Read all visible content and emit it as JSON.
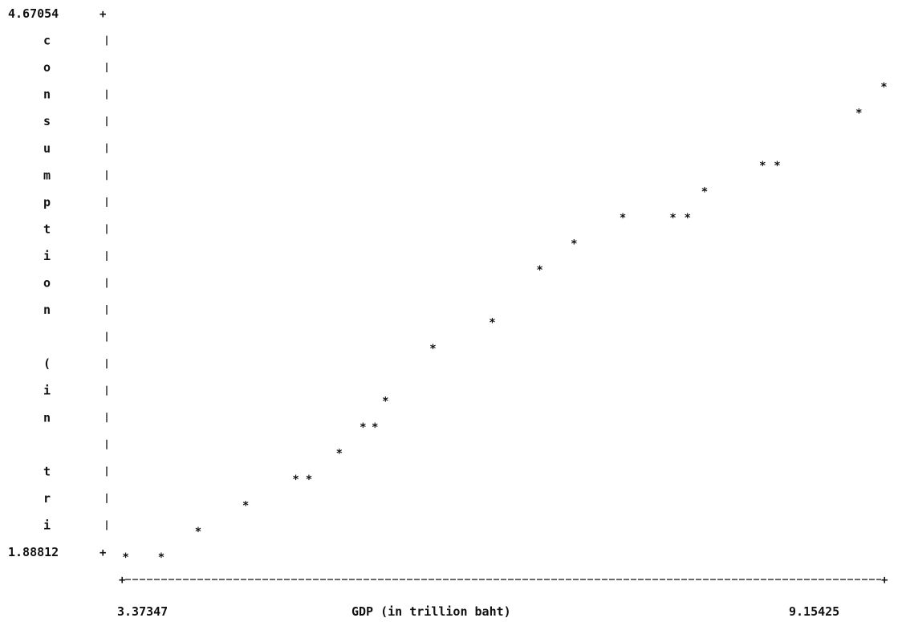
{
  "chart_data": {
    "type": "scatter",
    "title": "",
    "xlabel": "GDP (in trillion baht)",
    "ylabel": "consumption (in tri",
    "xlim": [
      3.37347,
      9.15425
    ],
    "ylim": [
      1.88812,
      4.67054
    ],
    "x_tick_labels": [
      "3.37347",
      "9.15425"
    ],
    "y_tick_labels": [
      "4.67054",
      "1.88812"
    ],
    "grid": false,
    "points": [
      {
        "x": 3.4,
        "y": 1.888
      },
      {
        "x": 3.67,
        "y": 1.888
      },
      {
        "x": 3.95,
        "y": 2.02
      },
      {
        "x": 4.31,
        "y": 2.155
      },
      {
        "x": 4.69,
        "y": 2.29
      },
      {
        "x": 4.79,
        "y": 2.29
      },
      {
        "x": 5.02,
        "y": 2.425
      },
      {
        "x": 5.2,
        "y": 2.56
      },
      {
        "x": 5.29,
        "y": 2.56
      },
      {
        "x": 5.37,
        "y": 2.695
      },
      {
        "x": 5.73,
        "y": 2.966
      },
      {
        "x": 6.18,
        "y": 3.101
      },
      {
        "x": 6.54,
        "y": 3.372
      },
      {
        "x": 6.8,
        "y": 3.507
      },
      {
        "x": 7.17,
        "y": 3.642
      },
      {
        "x": 7.55,
        "y": 3.642
      },
      {
        "x": 7.66,
        "y": 3.642
      },
      {
        "x": 7.79,
        "y": 3.777
      },
      {
        "x": 8.23,
        "y": 3.912
      },
      {
        "x": 8.34,
        "y": 3.912
      },
      {
        "x": 8.96,
        "y": 4.183
      },
      {
        "x": 9.15,
        "y": 4.318
      }
    ]
  }
}
